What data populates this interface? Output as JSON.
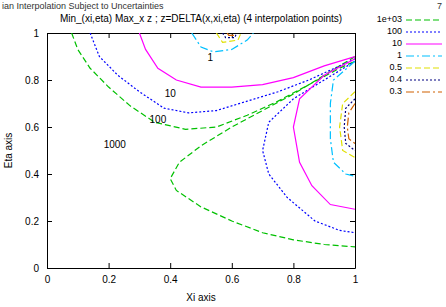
{
  "page_header": {
    "text": "ian Interpolation Subject to Uncertainties",
    "page": "7"
  },
  "chart_data": {
    "type": "line",
    "title": "Min_(xi,eta) Max_x z ; z=DELTA(x,xi,eta) (4 interpolation points)",
    "x_label": "Xi axis",
    "y_label": "Eta axis",
    "xlim": [
      0,
      1
    ],
    "ylim": [
      0,
      1
    ],
    "xticks": [
      0,
      0.2,
      0.4,
      0.6,
      0.8,
      1
    ],
    "yticks": [
      0,
      0.2,
      0.4,
      0.6,
      0.8,
      1
    ],
    "grid": false,
    "legend": "right",
    "annotations": [
      {
        "text": "1",
        "x": 0.53,
        "y": 0.89
      },
      {
        "text": "10",
        "x": 0.4,
        "y": 0.74
      },
      {
        "text": "100",
        "x": 0.36,
        "y": 0.63
      },
      {
        "text": "1000",
        "x": 0.22,
        "y": 0.52
      }
    ],
    "series": [
      {
        "name": "1e+03",
        "color": "#00c000",
        "line_style": "dashed",
        "x": [
          0.08,
          0.1,
          0.14,
          0.2,
          0.27,
          0.35,
          0.45,
          0.55,
          0.65,
          0.75,
          0.85,
          0.95,
          1,
          null,
          1,
          0.9,
          0.8,
          0.7,
          0.6,
          0.5,
          0.43,
          0.4,
          0.42,
          0.5,
          0.6,
          0.7,
          0.8,
          0.9,
          1
        ],
        "values": [
          1,
          0.93,
          0.85,
          0.77,
          0.69,
          0.62,
          0.59,
          0.6,
          0.65,
          0.71,
          0.78,
          0.85,
          0.88,
          null,
          0.9,
          0.82,
          0.74,
          0.67,
          0.6,
          0.52,
          0.45,
          0.38,
          0.33,
          0.26,
          0.2,
          0.15,
          0.12,
          0.1,
          0.09
        ]
      },
      {
        "name": "100",
        "color": "#0000ff",
        "line_style": "dotted",
        "x": [
          0.14,
          0.17,
          0.23,
          0.3,
          0.38,
          0.46,
          0.55,
          0.65,
          0.75,
          0.85,
          0.95,
          1,
          null,
          1,
          0.9,
          0.8,
          0.72,
          0.7,
          0.72,
          0.78,
          0.87,
          0.95,
          1
        ],
        "values": [
          1,
          0.9,
          0.82,
          0.75,
          0.68,
          0.66,
          0.67,
          0.71,
          0.75,
          0.8,
          0.86,
          0.89,
          null,
          0.88,
          0.8,
          0.72,
          0.62,
          0.5,
          0.4,
          0.3,
          0.2,
          0.16,
          0.15
        ]
      },
      {
        "name": "10",
        "color": "#ff00ff",
        "line_style": "solid",
        "x": [
          0.3,
          0.32,
          0.36,
          0.42,
          0.5,
          0.6,
          0.7,
          0.8,
          0.9,
          1,
          null,
          1,
          0.9,
          0.82,
          0.8,
          0.82,
          0.86,
          0.92,
          1
        ],
        "values": [
          1,
          0.93,
          0.85,
          0.8,
          0.77,
          0.77,
          0.78,
          0.81,
          0.86,
          0.9,
          null,
          0.89,
          0.82,
          0.72,
          0.6,
          0.45,
          0.35,
          0.27,
          0.25
        ]
      },
      {
        "name": "1",
        "color": "#00c0ff",
        "line_style": "dashdot",
        "x": [
          0.47,
          0.5,
          0.54,
          0.6,
          0.65,
          0.67,
          null,
          1,
          0.93,
          0.92,
          0.92,
          0.93,
          0.97,
          1
        ],
        "values": [
          1,
          0.94,
          0.92,
          0.93,
          0.97,
          1,
          null,
          0.88,
          0.8,
          0.7,
          0.55,
          0.45,
          0.4,
          0.39
        ]
      },
      {
        "name": "0.5",
        "color": "#e0e000",
        "line_style": "dashed",
        "x": [
          0.55,
          0.57,
          0.62,
          0.63,
          null,
          1,
          0.96,
          0.95,
          0.96,
          1
        ],
        "values": [
          1,
          0.96,
          0.97,
          1,
          null,
          0.75,
          0.7,
          0.6,
          0.5,
          0.47
        ]
      },
      {
        "name": "0.4",
        "color": "#000080",
        "line_style": "dotted",
        "x": [
          0.57,
          0.58,
          0.61,
          0.615,
          null,
          1,
          0.97,
          0.965,
          0.97,
          1
        ],
        "values": [
          1,
          0.98,
          0.98,
          1,
          null,
          0.72,
          0.68,
          0.6,
          0.53,
          0.5
        ]
      },
      {
        "name": "0.3",
        "color": "#d06000",
        "line_style": "dashdot",
        "x": [
          0.585,
          0.59,
          0.605,
          0.61,
          null,
          1,
          0.98,
          0.975,
          0.98,
          1
        ],
        "values": [
          1,
          0.99,
          0.99,
          1,
          null,
          0.7,
          0.66,
          0.6,
          0.55,
          0.53
        ]
      }
    ]
  }
}
